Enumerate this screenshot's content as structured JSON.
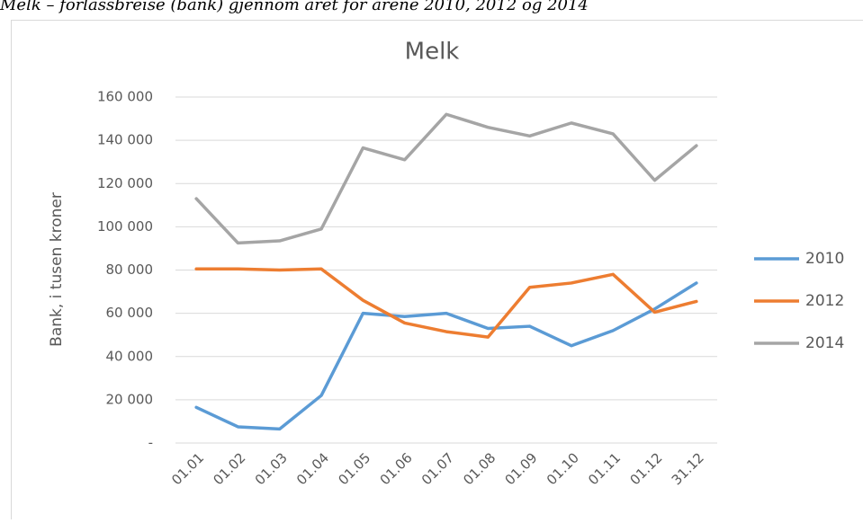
{
  "caption": "Melk – forlassbreise (bank) gjennom året for årene 2010, 2012 og 2014",
  "chart_data": {
    "type": "line",
    "title": "Melk",
    "y_label": "Bank, i tusen kroner",
    "categories": [
      "01.01",
      "01.02",
      "01.03",
      "01.04",
      "01.05",
      "01.06",
      "01.07",
      "01.08",
      "01.09",
      "01.10",
      "01.11",
      "01.12",
      "31.12"
    ],
    "series": [
      {
        "name": "2010",
        "color": "#5b9bd5",
        "values": [
          16500,
          7500,
          6500,
          22000,
          60000,
          58500,
          60000,
          53000,
          54000,
          45000,
          52000,
          62000,
          74000
        ]
      },
      {
        "name": "2012",
        "color": "#ed7d31",
        "values": [
          80500,
          80500,
          80000,
          80500,
          66000,
          55500,
          51500,
          49000,
          72000,
          74000,
          78000,
          60500,
          65500
        ]
      },
      {
        "name": "2014",
        "color": "#a5a5a5",
        "values": [
          113000,
          92500,
          93500,
          99000,
          136500,
          131000,
          152000,
          146000,
          142000,
          148000,
          143000,
          121500,
          137500
        ]
      }
    ],
    "ylim": [
      0,
      160000
    ],
    "yticks": [
      {
        "value": 0,
        "label": "-"
      },
      {
        "value": 20000,
        "label": "20 000"
      },
      {
        "value": 40000,
        "label": "40 000"
      },
      {
        "value": 60000,
        "label": "60 000"
      },
      {
        "value": 80000,
        "label": "80 000"
      },
      {
        "value": 100000,
        "label": "100 000"
      },
      {
        "value": 120000,
        "label": "120 000"
      },
      {
        "value": 140000,
        "label": "140 000"
      },
      {
        "value": 160000,
        "label": "160 000"
      }
    ],
    "grid": true,
    "legend": "right"
  }
}
